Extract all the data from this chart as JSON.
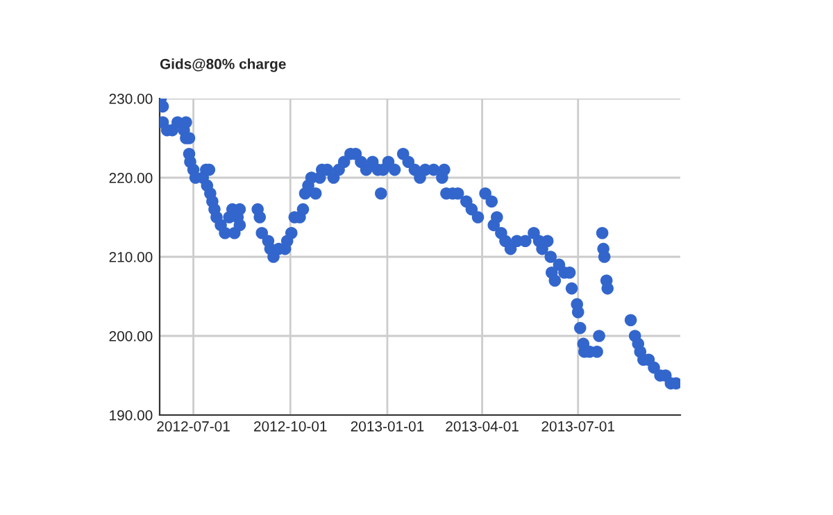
{
  "chart_data": {
    "type": "scatter",
    "title": "Gids@80% charge",
    "marker": "circle",
    "grid": true,
    "xlim": [
      "2012-05-30",
      "2013-10-06"
    ],
    "xticks": [
      {
        "value": "2012-07-01",
        "label": "2012-07-01"
      },
      {
        "value": "2012-10-01",
        "label": "2012-10-01"
      },
      {
        "value": "2013-01-01",
        "label": "2013-01-01"
      },
      {
        "value": "2013-04-01",
        "label": "2013-04-01"
      },
      {
        "value": "2013-07-01",
        "label": "2013-07-01"
      }
    ],
    "ylim": [
      190,
      230
    ],
    "yticks": [
      {
        "value": 190,
        "label": "190.00"
      },
      {
        "value": 200,
        "label": "200.00"
      },
      {
        "value": 210,
        "label": "210.00"
      },
      {
        "value": 220,
        "label": "220.00"
      },
      {
        "value": 230,
        "label": "230.00"
      }
    ],
    "x": [
      "2012-05-31",
      "2012-06-02",
      "2012-06-02",
      "2012-06-06",
      "2012-06-11",
      "2012-06-16",
      "2012-06-22",
      "2012-06-24",
      "2012-06-24",
      "2012-06-27",
      "2012-06-27",
      "2012-06-28",
      "2012-07-01",
      "2012-07-03",
      "2012-07-10",
      "2012-07-13",
      "2012-07-14",
      "2012-07-16",
      "2012-07-17",
      "2012-07-19",
      "2012-07-21",
      "2012-07-23",
      "2012-07-27",
      "2012-07-31",
      "2012-08-04",
      "2012-08-07",
      "2012-08-09",
      "2012-08-12",
      "2012-08-14",
      "2012-08-14",
      "2012-08-31",
      "2012-09-02",
      "2012-09-04",
      "2012-09-10",
      "2012-09-12",
      "2012-09-15",
      "2012-09-20",
      "2012-09-26",
      "2012-09-28",
      "2012-10-02",
      "2012-10-05",
      "2012-10-10",
      "2012-10-13",
      "2012-10-15",
      "2012-10-18",
      "2012-10-21",
      "2012-10-25",
      "2012-10-29",
      "2012-10-31",
      "2012-11-05",
      "2012-11-11",
      "2012-11-16",
      "2012-11-21",
      "2012-11-27",
      "2012-12-02",
      "2012-12-07",
      "2012-12-12",
      "2012-12-18",
      "2012-12-23",
      "2012-12-26",
      "2012-12-28",
      "2013-01-02",
      "2013-01-08",
      "2013-01-16",
      "2013-01-21",
      "2013-01-27",
      "2013-02-01",
      "2013-02-06",
      "2013-02-14",
      "2013-02-22",
      "2013-02-24",
      "2013-02-26",
      "2013-03-04",
      "2013-03-09",
      "2013-03-17",
      "2013-03-22",
      "2013-03-28",
      "2013-04-04",
      "2013-04-10",
      "2013-04-12",
      "2013-04-15",
      "2013-04-19",
      "2013-04-23",
      "2013-04-28",
      "2013-05-04",
      "2013-05-12",
      "2013-05-20",
      "2013-05-25",
      "2013-05-28",
      "2013-06-02",
      "2013-06-05",
      "2013-06-06",
      "2013-06-09",
      "2013-06-13",
      "2013-06-18",
      "2013-06-23",
      "2013-06-25",
      "2013-06-30",
      "2013-07-01",
      "2013-07-03",
      "2013-07-06",
      "2013-07-07",
      "2013-07-12",
      "2013-07-19",
      "2013-07-21",
      "2013-07-24",
      "2013-07-25",
      "2013-07-26",
      "2013-07-28",
      "2013-07-29",
      "2013-08-20",
      "2013-08-24",
      "2013-08-27",
      "2013-08-29",
      "2013-09-01",
      "2013-09-06",
      "2013-09-11",
      "2013-09-17",
      "2013-09-22",
      "2013-09-27",
      "2013-10-02"
    ],
    "series": [
      {
        "color": "#3366cc",
        "values": [
          230,
          229,
          227,
          226,
          226,
          227,
          226,
          227,
          225,
          225,
          223,
          222,
          221,
          220,
          220,
          221,
          219,
          221,
          218,
          217,
          216,
          215,
          214,
          213,
          215,
          216,
          213,
          215,
          216,
          214,
          216,
          215,
          213,
          212,
          211,
          210,
          211,
          211,
          212,
          213,
          215,
          215,
          216,
          218,
          219,
          220,
          218,
          220,
          221,
          221,
          220,
          221,
          222,
          223,
          223,
          222,
          221,
          222,
          221,
          218,
          221,
          222,
          221,
          223,
          222,
          221,
          220,
          221,
          221,
          220,
          221,
          218,
          218,
          218,
          217,
          216,
          215,
          218,
          217,
          214,
          215,
          213,
          212,
          211,
          212,
          212,
          213,
          212,
          211,
          212,
          210,
          208,
          207,
          209,
          208,
          208,
          206,
          204,
          203,
          201,
          199,
          198,
          198,
          198,
          200,
          213,
          211,
          210,
          207,
          206,
          202,
          200,
          199,
          198,
          197,
          197,
          196,
          195,
          195,
          194,
          194
        ]
      }
    ]
  }
}
